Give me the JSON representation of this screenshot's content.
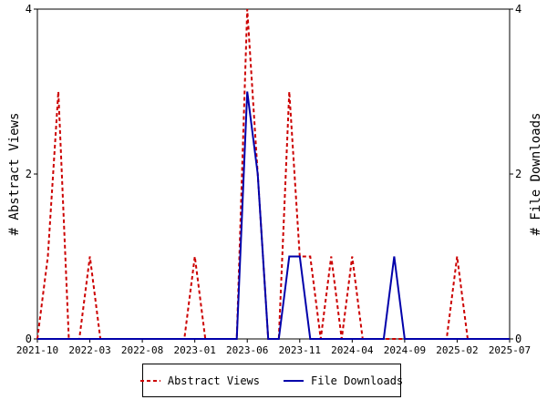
{
  "chart_data": {
    "type": "line",
    "x_ticks": [
      "2021-10",
      "2022-03",
      "2022-08",
      "2023-01",
      "2023-06",
      "2023-11",
      "2024-04",
      "2024-09",
      "2025-02",
      "2025-07"
    ],
    "x": [
      "2021-10",
      "2021-11",
      "2021-12",
      "2022-01",
      "2022-02",
      "2022-03",
      "2022-04",
      "2022-05",
      "2022-06",
      "2022-07",
      "2022-08",
      "2022-09",
      "2022-10",
      "2022-11",
      "2022-12",
      "2023-01",
      "2023-02",
      "2023-03",
      "2023-04",
      "2023-05",
      "2023-06",
      "2023-07",
      "2023-08",
      "2023-09",
      "2023-10",
      "2023-11",
      "2023-12",
      "2024-01",
      "2024-02",
      "2024-03",
      "2024-04",
      "2024-05",
      "2024-06",
      "2024-07",
      "2024-08",
      "2024-09",
      "2024-10",
      "2024-11",
      "2024-12",
      "2025-01",
      "2025-02",
      "2025-03",
      "2025-04",
      "2025-05",
      "2025-06",
      "2025-07"
    ],
    "series": [
      {
        "name": "Abstract Views",
        "color": "#cc0000",
        "style": "dashed",
        "values": [
          0,
          1,
          3,
          0,
          0,
          1,
          0,
          0,
          0,
          0,
          0,
          0,
          0,
          0,
          0,
          1,
          0,
          0,
          0,
          0,
          4,
          2,
          0,
          0,
          3,
          1,
          1,
          0,
          1,
          0,
          1,
          0,
          0,
          0,
          0,
          0,
          0,
          0,
          0,
          0,
          1,
          0,
          0,
          0,
          0,
          0
        ]
      },
      {
        "name": "File Downloads",
        "color": "#0000aa",
        "style": "solid",
        "values": [
          0,
          0,
          0,
          0,
          0,
          0,
          0,
          0,
          0,
          0,
          0,
          0,
          0,
          0,
          0,
          0,
          0,
          0,
          0,
          0,
          3,
          2,
          0,
          0,
          1,
          1,
          0,
          0,
          0,
          0,
          0,
          0,
          0,
          0,
          1,
          0,
          0,
          0,
          0,
          0,
          0,
          0,
          0,
          0,
          0,
          0
        ]
      }
    ],
    "ylabel_left": "# Abstract Views",
    "ylabel_right": "# File Downloads",
    "y_ticks": [
      "0",
      "2",
      "4"
    ],
    "ylim": [
      0,
      4
    ],
    "grid": false,
    "legend_position": "bottom"
  }
}
